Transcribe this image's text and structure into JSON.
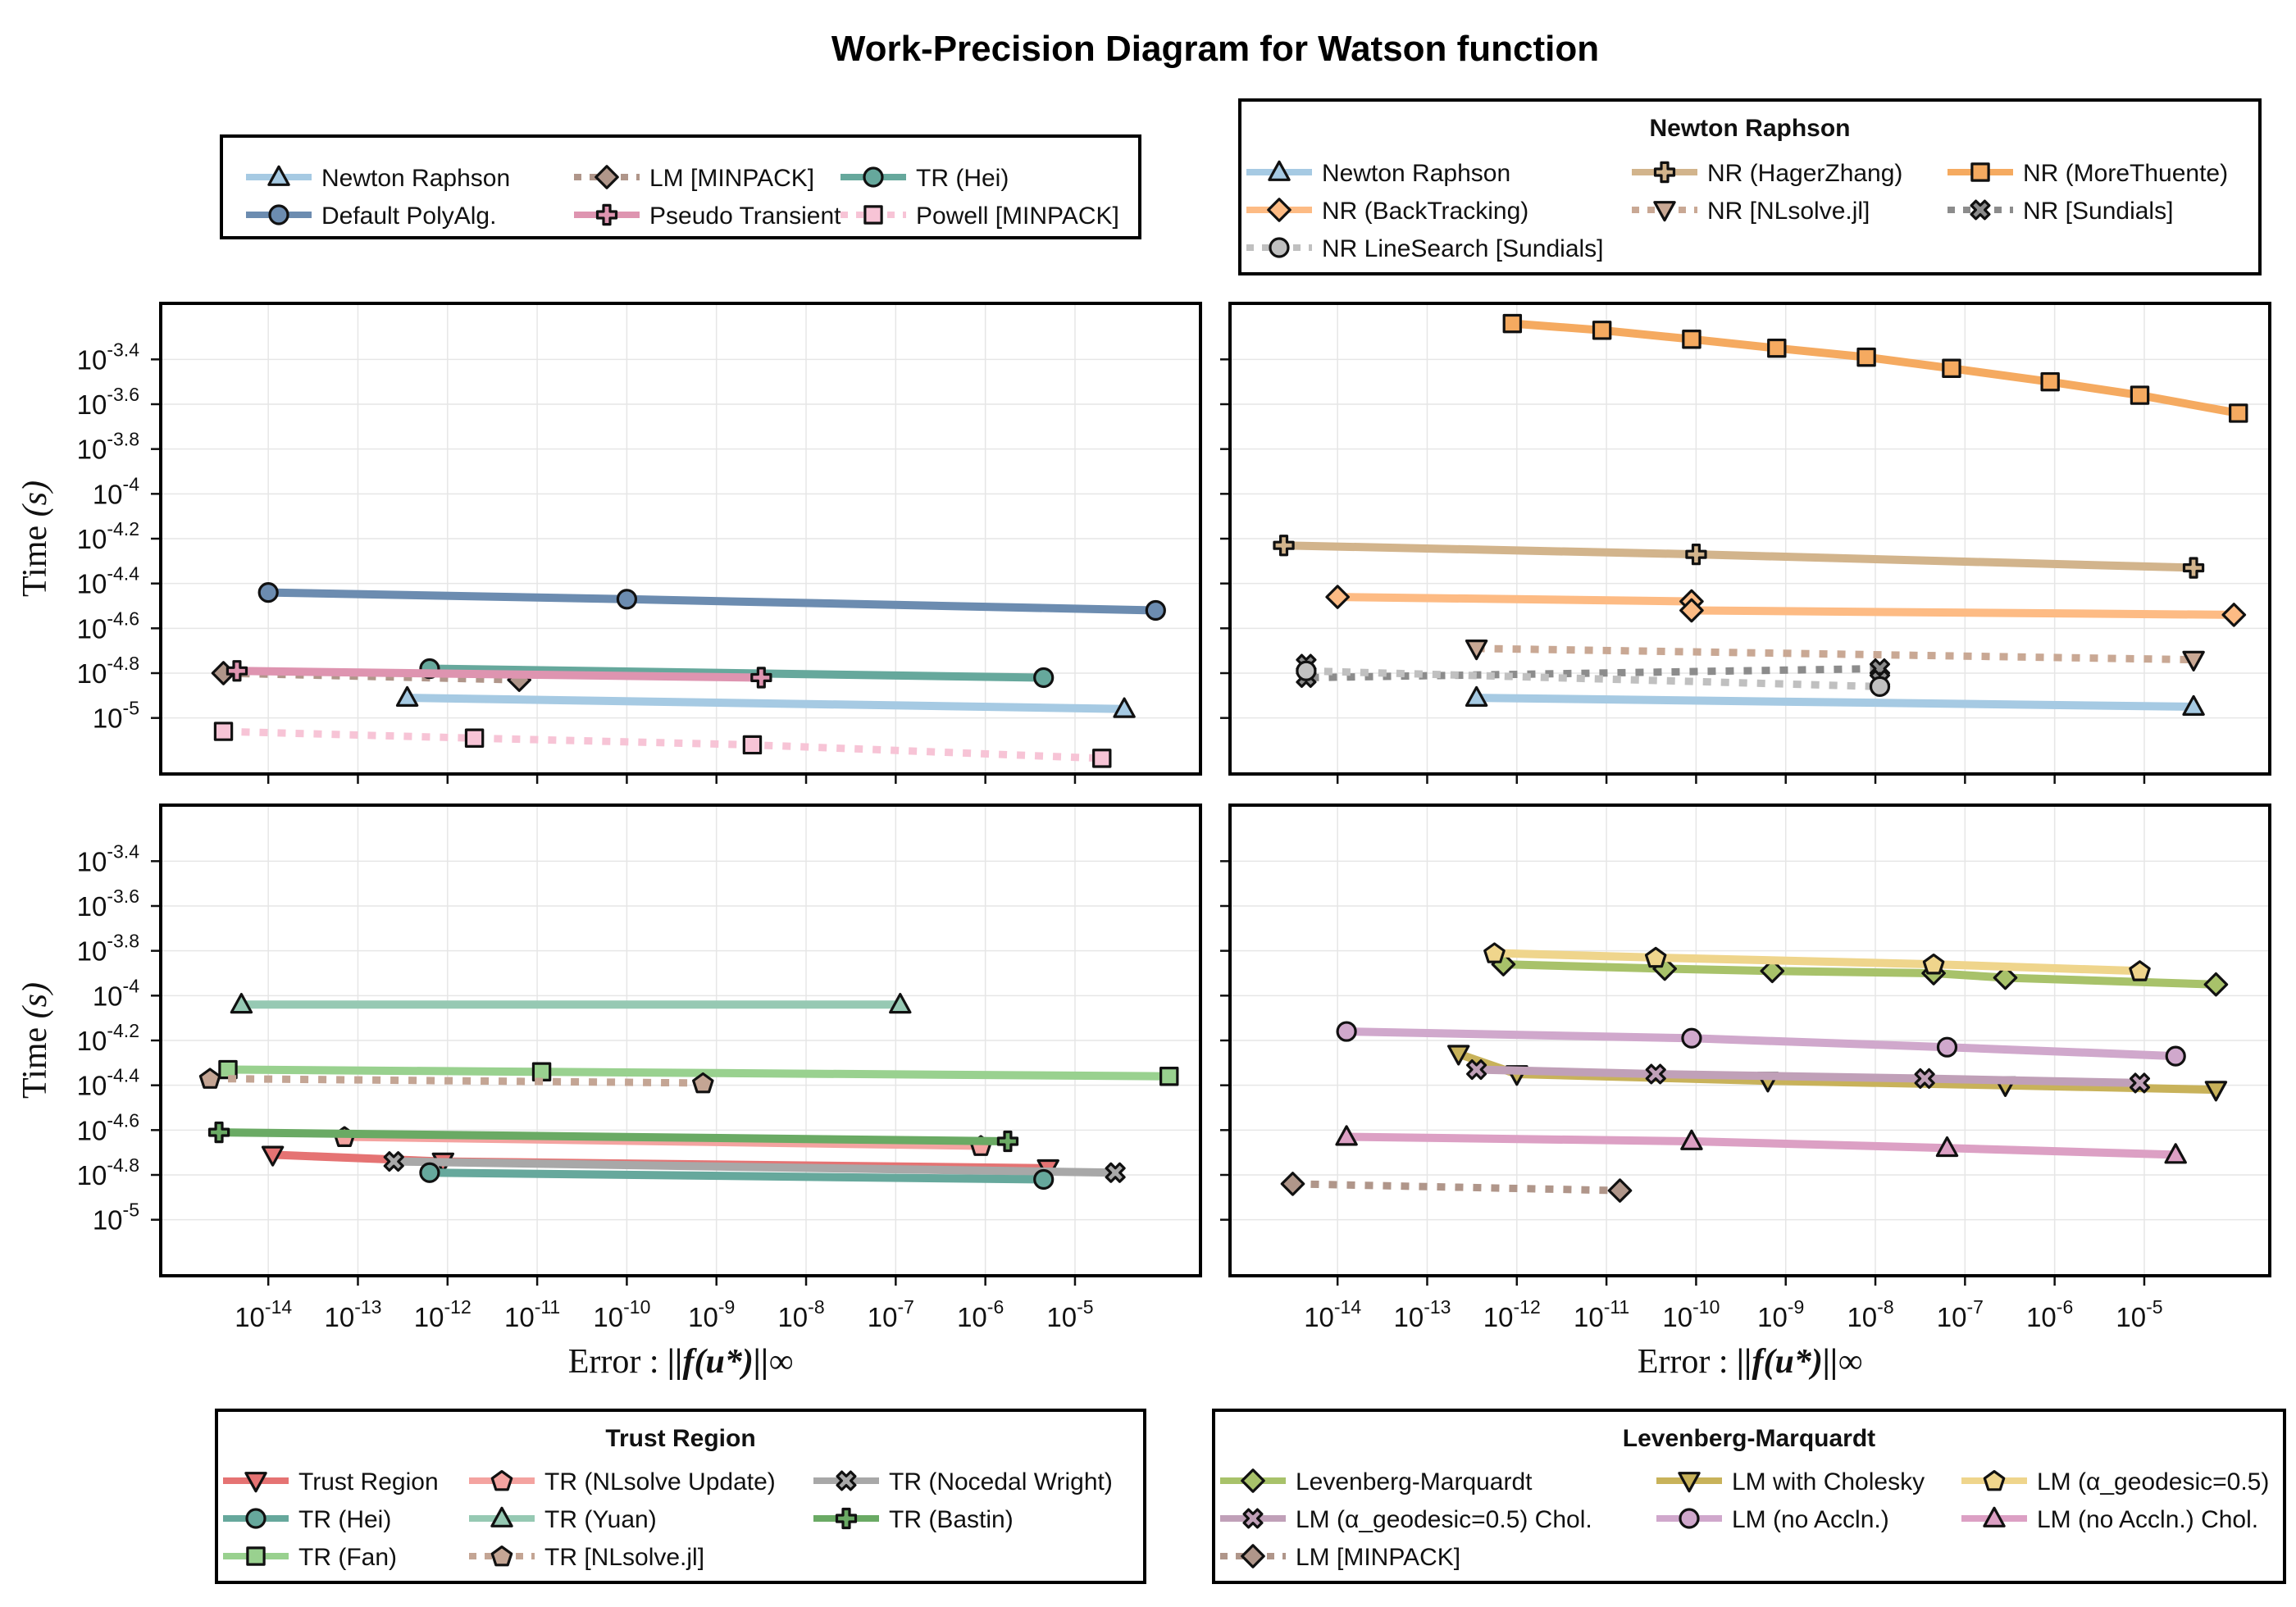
{
  "figure_title": "Work-Precision Diagram for Watson function",
  "y_axis_label": "Time",
  "y_axis_label_unit": "(s)",
  "x_axis_label": "Error :",
  "x_axis_label_math": "||f(u*)||∞",
  "legends": [
    {
      "id": "top-left",
      "title": "",
      "columns": 3,
      "entries": [
        {
          "name": "Newton Raphson",
          "color": "#a6cae3",
          "marker": "triangle",
          "dash": "solid"
        },
        {
          "name": "LM [MINPACK]",
          "color": "#b0968a",
          "marker": "diamond",
          "dash": "dot"
        },
        {
          "name": "TR (Hei)",
          "color": "#66a89c",
          "marker": "circle",
          "dash": "solid"
        },
        {
          "name": "Default PolyAlg.",
          "color": "#6c8cb0",
          "marker": "circle",
          "dash": "solid"
        },
        {
          "name": "Pseudo Transient",
          "color": "#de94b0",
          "marker": "cross",
          "dash": "solid"
        },
        {
          "name": "Powell [MINPACK]",
          "color": "#f7c4d6",
          "marker": "square",
          "dash": "dot"
        }
      ]
    },
    {
      "id": "newton-raphson",
      "title": "Newton Raphson",
      "columns": 3,
      "entries": [
        {
          "name": "Newton Raphson",
          "color": "#a6cae3",
          "marker": "triangle",
          "dash": "solid"
        },
        {
          "name": "NR (HagerZhang)",
          "color": "#d2b48c",
          "marker": "cross",
          "dash": "solid"
        },
        {
          "name": "NR (MoreThuente)",
          "color": "#f5aa60",
          "marker": "square",
          "dash": "solid"
        },
        {
          "name": "NR (BackTracking)",
          "color": "#fdbb84",
          "marker": "diamond",
          "dash": "solid"
        },
        {
          "name": "NR [NLsolve.jl]",
          "color": "#c9a894",
          "marker": "triangle-down",
          "dash": "dot"
        },
        {
          "name": "NR [Sundials]",
          "color": "#8c8c8c",
          "marker": "x",
          "dash": "dot"
        },
        {
          "name": "NR LineSearch [Sundials]",
          "color": "#c0c0c0",
          "marker": "circle",
          "dash": "dot"
        }
      ]
    },
    {
      "id": "trust-region",
      "title": "Trust Region",
      "columns": 3,
      "entries": [
        {
          "name": "Trust Region",
          "color": "#e57373",
          "marker": "triangle-down",
          "dash": "solid"
        },
        {
          "name": "TR (NLsolve Update)",
          "color": "#f4a3a0",
          "marker": "pentagon",
          "dash": "solid"
        },
        {
          "name": "TR (Nocedal Wright)",
          "color": "#a8a8a8",
          "marker": "x",
          "dash": "solid"
        },
        {
          "name": "TR (Hei)",
          "color": "#66a89c",
          "marker": "circle",
          "dash": "solid"
        },
        {
          "name": "TR (Yuan)",
          "color": "#96c9b3",
          "marker": "triangle",
          "dash": "solid"
        },
        {
          "name": "TR (Bastin)",
          "color": "#6aaa64",
          "marker": "cross",
          "dash": "solid"
        },
        {
          "name": "TR (Fan)",
          "color": "#99d18f",
          "marker": "square",
          "dash": "solid"
        },
        {
          "name": "TR [NLsolve.jl]",
          "color": "#c4a594",
          "marker": "pentagon",
          "dash": "dot"
        }
      ]
    },
    {
      "id": "levenberg-marquardt",
      "title": "Levenberg-Marquardt",
      "columns": 3,
      "entries": [
        {
          "name": "Levenberg-Marquardt",
          "color": "#a8c26a",
          "marker": "diamond",
          "dash": "solid"
        },
        {
          "name": "LM with Cholesky",
          "color": "#c8b25a",
          "marker": "triangle-down",
          "dash": "solid"
        },
        {
          "name": "LM (α_geodesic=0.5)",
          "color": "#efd58c",
          "marker": "pentagon",
          "dash": "solid"
        },
        {
          "name": "LM (α_geodesic=0.5) Chol.",
          "color": "#c0a0b8",
          "marker": "x",
          "dash": "solid"
        },
        {
          "name": "LM (no Accln.)",
          "color": "#d0a8cc",
          "marker": "circle",
          "dash": "solid"
        },
        {
          "name": "LM (no Accln.) Chol.",
          "color": "#dca0c4",
          "marker": "triangle",
          "dash": "solid"
        },
        {
          "name": "LM [MINPACK]",
          "color": "#b0968a",
          "marker": "diamond",
          "dash": "dot"
        }
      ]
    }
  ],
  "chart_data": [
    {
      "type": "line",
      "panel": "top-left",
      "xscale": "log10",
      "yscale": "log10",
      "xlim": [
        -15.2,
        -3.6
      ],
      "ylim": [
        -5.25,
        -3.15
      ],
      "x_ticks": [
        -14,
        -13,
        -12,
        -11,
        -10,
        -9,
        -8,
        -7,
        -6,
        -5
      ],
      "y_ticks": [
        -3.4,
        -3.6,
        -3.8,
        -4,
        -4.2,
        -4.4,
        -4.6,
        -4.8,
        -5
      ],
      "series": [
        {
          "name": "Newton Raphson",
          "x": [
            -12.45,
            -4.45
          ],
          "y": [
            -4.91,
            -4.96
          ]
        },
        {
          "name": "Default PolyAlg.",
          "x": [
            -14.0,
            -10.0,
            -4.1
          ],
          "y": [
            -4.44,
            -4.47,
            -4.52
          ]
        },
        {
          "name": "LM [MINPACK]",
          "x": [
            -14.5,
            -11.2
          ],
          "y": [
            -4.8,
            -4.83
          ]
        },
        {
          "name": "TR (Hei)",
          "x": [
            -12.2,
            -5.35
          ],
          "y": [
            -4.78,
            -4.82
          ]
        },
        {
          "name": "Pseudo Transient",
          "x": [
            -14.35,
            -8.5
          ],
          "y": [
            -4.79,
            -4.82
          ]
        },
        {
          "name": "Powell [MINPACK]",
          "x": [
            -14.5,
            -11.7,
            -8.6,
            -4.7
          ],
          "y": [
            -5.06,
            -5.09,
            -5.12,
            -5.18
          ]
        }
      ]
    },
    {
      "type": "line",
      "panel": "top-right",
      "xscale": "log10",
      "yscale": "log10",
      "xlim": [
        -15.2,
        -3.6
      ],
      "ylim": [
        -5.25,
        -3.15
      ],
      "x_ticks": [
        -14,
        -13,
        -12,
        -11,
        -10,
        -9,
        -8,
        -7,
        -6,
        -5
      ],
      "y_ticks": [
        -3.4,
        -3.6,
        -3.8,
        -4,
        -4.2,
        -4.4,
        -4.6,
        -4.8,
        -5
      ],
      "series": [
        {
          "name": "Newton Raphson",
          "x": [
            -12.45,
            -4.45
          ],
          "y": [
            -4.91,
            -4.95
          ]
        },
        {
          "name": "NR (HagerZhang)",
          "x": [
            -14.6,
            -10.0,
            -4.45
          ],
          "y": [
            -4.23,
            -4.27,
            -4.33
          ]
        },
        {
          "name": "NR (MoreThuente)",
          "x": [
            -12.05,
            -11.05,
            -10.05,
            -9.1,
            -8.1,
            -7.15,
            -6.05,
            -5.05,
            -3.95
          ],
          "y": [
            -3.24,
            -3.27,
            -3.31,
            -3.35,
            -3.39,
            -3.44,
            -3.5,
            -3.56,
            -3.64
          ]
        },
        {
          "name": "NR (BackTracking)",
          "x": [
            -14.0,
            -10.05,
            -10.05,
            -4.0
          ],
          "y": [
            -4.46,
            -4.48,
            -4.52,
            -4.54
          ]
        },
        {
          "name": "NR [NLsolve.jl]",
          "x": [
            -12.45,
            -4.45
          ],
          "y": [
            -4.69,
            -4.74
          ]
        },
        {
          "name": "NR [Sundials]",
          "x": [
            -14.35,
            -14.35,
            -7.95,
            -7.95
          ],
          "y": [
            -4.76,
            -4.82,
            -4.78,
            -4.83
          ]
        },
        {
          "name": "NR LineSearch [Sundials]",
          "x": [
            -14.35,
            -7.95
          ],
          "y": [
            -4.79,
            -4.86
          ]
        }
      ]
    },
    {
      "type": "line",
      "panel": "bottom-left",
      "xscale": "log10",
      "yscale": "log10",
      "xlim": [
        -15.2,
        -3.6
      ],
      "ylim": [
        -5.25,
        -3.15
      ],
      "x_ticks": [
        -14,
        -13,
        -12,
        -11,
        -10,
        -9,
        -8,
        -7,
        -6,
        -5
      ],
      "y_ticks": [
        -3.4,
        -3.6,
        -3.8,
        -4,
        -4.2,
        -4.4,
        -4.6,
        -4.8,
        -5
      ],
      "series": [
        {
          "name": "Trust Region",
          "x": [
            -13.95,
            -12.05,
            -5.3
          ],
          "y": [
            -4.71,
            -4.74,
            -4.77
          ]
        },
        {
          "name": "TR (NLsolve Update)",
          "x": [
            -13.15,
            -6.05
          ],
          "y": [
            -4.63,
            -4.67
          ]
        },
        {
          "name": "TR (Nocedal Wright)",
          "x": [
            -12.6,
            -4.55
          ],
          "y": [
            -4.74,
            -4.79
          ]
        },
        {
          "name": "TR (Hei)",
          "x": [
            -12.2,
            -5.35
          ],
          "y": [
            -4.79,
            -4.82
          ]
        },
        {
          "name": "TR (Yuan)",
          "x": [
            -14.3,
            -6.95
          ],
          "y": [
            -4.04,
            -4.04
          ]
        },
        {
          "name": "TR (Bastin)",
          "x": [
            -14.55,
            -5.75
          ],
          "y": [
            -4.61,
            -4.65
          ]
        },
        {
          "name": "TR (Fan)",
          "x": [
            -14.45,
            -10.95,
            -3.95
          ],
          "y": [
            -4.33,
            -4.34,
            -4.36
          ]
        },
        {
          "name": "TR [NLsolve.jl]",
          "x": [
            -14.65,
            -9.15
          ],
          "y": [
            -4.37,
            -4.39
          ]
        }
      ]
    },
    {
      "type": "line",
      "panel": "bottom-right",
      "xscale": "log10",
      "yscale": "log10",
      "xlim": [
        -15.2,
        -3.6
      ],
      "ylim": [
        -5.25,
        -3.15
      ],
      "x_ticks": [
        -14,
        -13,
        -12,
        -11,
        -10,
        -9,
        -8,
        -7,
        -6,
        -5
      ],
      "y_ticks": [
        -3.4,
        -3.6,
        -3.8,
        -4,
        -4.2,
        -4.4,
        -4.6,
        -4.8,
        -5
      ],
      "series": [
        {
          "name": "Levenberg-Marquardt",
          "x": [
            -12.15,
            -10.35,
            -9.15,
            -7.35,
            -6.55,
            -4.2
          ],
          "y": [
            -3.86,
            -3.88,
            -3.89,
            -3.9,
            -3.92,
            -3.95
          ]
        },
        {
          "name": "LM with Cholesky",
          "x": [
            -12.65,
            -12.0,
            -9.2,
            -6.55,
            -4.2
          ],
          "y": [
            -4.26,
            -4.35,
            -4.38,
            -4.4,
            -4.42
          ]
        },
        {
          "name": "LM (α_geodesic=0.5)",
          "x": [
            -12.25,
            -10.45,
            -7.35,
            -5.05
          ],
          "y": [
            -3.81,
            -3.83,
            -3.86,
            -3.89
          ]
        },
        {
          "name": "LM (α_geodesic=0.5) Chol.",
          "x": [
            -12.45,
            -10.45,
            -7.45,
            -5.05
          ],
          "y": [
            -4.33,
            -4.35,
            -4.37,
            -4.39
          ]
        },
        {
          "name": "LM (no Accln.)",
          "x": [
            -13.9,
            -10.05,
            -7.2,
            -4.65
          ],
          "y": [
            -4.16,
            -4.19,
            -4.23,
            -4.27
          ]
        },
        {
          "name": "LM (no Accln.) Chol.",
          "x": [
            -13.9,
            -10.05,
            -7.2,
            -4.65
          ],
          "y": [
            -4.63,
            -4.65,
            -4.68,
            -4.71
          ]
        },
        {
          "name": "LM [MINPACK]",
          "x": [
            -14.5,
            -10.85
          ],
          "y": [
            -4.84,
            -4.87
          ]
        }
      ]
    }
  ]
}
